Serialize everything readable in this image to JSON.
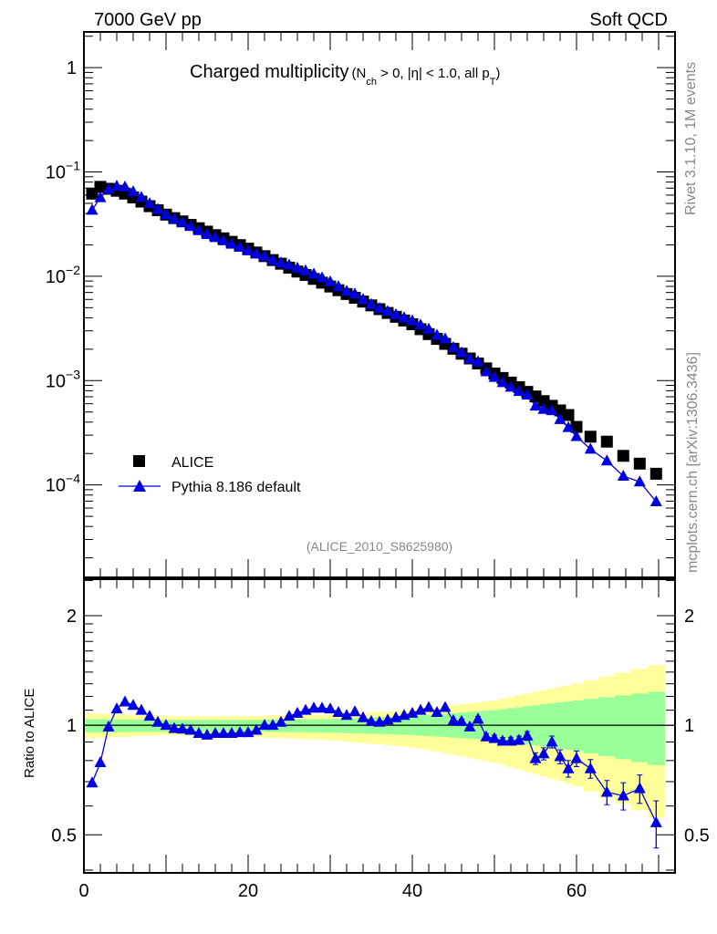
{
  "header": {
    "left": "7000 GeV pp",
    "right": "Soft QCD"
  },
  "side_text": {
    "rivet": "Rivet 3.1.10,  1M events",
    "mcplots": "mcplots.cern.ch [arXiv:1306.3436]"
  },
  "chart_data": [
    {
      "type": "scatter",
      "title": "Charged multiplicity",
      "title_detail": {
        "open": "(N",
        "sub1": "ch",
        "mid": " > 0, |η| < 1.0, all p",
        "sub2": "T",
        "close": ")"
      },
      "analysis_id": "(ALICE_2010_S8625980)",
      "yscale": "log",
      "ylim": [
        1.3e-05,
        2.2
      ],
      "xlim": [
        0,
        72
      ],
      "ytick_labels": [
        {
          "base": "1",
          "exp": ""
        },
        {
          "base": "10",
          "exp": "−1"
        },
        {
          "base": "10",
          "exp": "−2"
        },
        {
          "base": "10",
          "exp": "−3"
        },
        {
          "base": "10",
          "exp": "−4"
        }
      ],
      "ytick_values": [
        1,
        0.1,
        0.01,
        0.001,
        0.0001
      ],
      "legend": {
        "placement": "bottom-left",
        "entries": [
          "ALICE",
          "Pythia 8.186 default"
        ]
      },
      "x": [
        1,
        2,
        3,
        4,
        5,
        6,
        7,
        8,
        9,
        10,
        11,
        12,
        13,
        14,
        15,
        16,
        17,
        18,
        19,
        20,
        21,
        22,
        23,
        24,
        25,
        26,
        27,
        28,
        29,
        30,
        31,
        32,
        33,
        34,
        35,
        36,
        37,
        38,
        39,
        40,
        41,
        42,
        43,
        44,
        45,
        46,
        47,
        48,
        49,
        50,
        51,
        52,
        53,
        54,
        55,
        56,
        57,
        58,
        59,
        60,
        61.7,
        63.7,
        65.7,
        67.7,
        69.7
      ],
      "series": [
        {
          "name": "ALICE",
          "marker": "square",
          "color": "#000000",
          "values": [
            0.062,
            0.072,
            0.069,
            0.066,
            0.062,
            0.057,
            0.052,
            0.047,
            0.043,
            0.039,
            0.0361,
            0.0336,
            0.0311,
            0.0289,
            0.0268,
            0.0248,
            0.0231,
            0.0214,
            0.0199,
            0.0184,
            0.0169,
            0.0156,
            0.0143,
            0.0132,
            0.0121,
            0.0111,
            0.0103,
            0.00944,
            0.00869,
            0.00798,
            0.00735,
            0.00676,
            0.00622,
            0.00572,
            0.00526,
            0.00484,
            0.00445,
            0.00409,
            0.00377,
            0.00347,
            0.00311,
            0.00279,
            0.00251,
            0.00225,
            0.00202,
            0.00181,
            0.00163,
            0.00146,
            0.00131,
            0.00117,
            0.00106,
            0.000957,
            0.000865,
            0.00078,
            0.000705,
            0.000636,
            0.000574,
            0.000518,
            0.000468,
            0.00036,
            0.00029,
            0.00026,
            0.00019,
            0.00016,
            0.000128
          ]
        },
        {
          "name": "Pythia 8.186 default",
          "marker": "triangle",
          "color": "#0000e0",
          "ratio_to_ref": [
            0.695,
            0.79,
            0.99,
            1.11,
            1.16,
            1.135,
            1.1,
            1.06,
            1.02,
            1.0,
            0.98,
            0.977,
            0.97,
            0.95,
            0.94,
            0.95,
            0.95,
            0.95,
            0.955,
            0.955,
            0.97,
            1.0,
            1.0,
            1.02,
            1.06,
            1.08,
            1.1,
            1.115,
            1.115,
            1.11,
            1.085,
            1.065,
            1.09,
            1.05,
            1.025,
            1.02,
            1.035,
            1.05,
            1.065,
            1.08,
            1.1,
            1.12,
            1.085,
            1.12,
            1.03,
            1.025,
            0.99,
            1.04,
            0.93,
            0.92,
            0.905,
            0.905,
            0.91,
            0.935,
            0.81,
            0.835,
            0.9,
            0.82,
            0.76,
            0.81,
            0.76,
            0.655,
            0.64,
            0.67,
            0.54
          ],
          "ratio_err": [
            0.005,
            0.005,
            0.005,
            0.005,
            0.005,
            0.005,
            0.005,
            0.005,
            0.005,
            0.005,
            0.005,
            0.005,
            0.005,
            0.005,
            0.005,
            0.005,
            0.005,
            0.005,
            0.005,
            0.005,
            0.005,
            0.005,
            0.005,
            0.005,
            0.005,
            0.005,
            0.005,
            0.005,
            0.005,
            0.005,
            0.005,
            0.005,
            0.005,
            0.005,
            0.005,
            0.006,
            0.006,
            0.007,
            0.007,
            0.008,
            0.008,
            0.009,
            0.01,
            0.01,
            0.012,
            0.014,
            0.015,
            0.017,
            0.018,
            0.02,
            0.02,
            0.022,
            0.024,
            0.026,
            0.03,
            0.032,
            0.034,
            0.036,
            0.04,
            0.04,
            0.045,
            0.05,
            0.055,
            0.06,
            0.08
          ]
        }
      ]
    },
    {
      "type": "area",
      "ylabel": "Ratio to ALICE",
      "yscale": "log",
      "ylim": [
        0.393,
        2.52
      ],
      "ytick_labels": [
        "2",
        "1",
        "0.5"
      ],
      "ytick_values": [
        2,
        1,
        0.5
      ],
      "xtick_labels": [
        "0",
        "20",
        "40",
        "60"
      ],
      "xtick_values": [
        0,
        20,
        40,
        60
      ],
      "bands": {
        "x": [
          0,
          10,
          20,
          30,
          40,
          50,
          60,
          72
        ],
        "green_hi": [
          1.04,
          1.035,
          1.035,
          1.04,
          1.06,
          1.1,
          1.17,
          1.25
        ],
        "green_lo": [
          0.955,
          0.96,
          0.96,
          0.955,
          0.94,
          0.91,
          0.85,
          0.76
        ],
        "yellow_hi": [
          1.08,
          1.06,
          1.06,
          1.07,
          1.1,
          1.17,
          1.3,
          1.5
        ],
        "yellow_lo": [
          0.92,
          0.94,
          0.93,
          0.91,
          0.87,
          0.79,
          0.68,
          0.53
        ],
        "green": "#99ff99",
        "yellow": "#ffff99"
      }
    }
  ]
}
